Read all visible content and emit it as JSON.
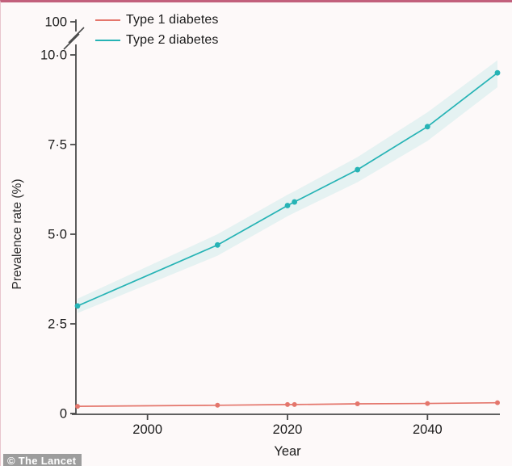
{
  "watermark": "© The Lancet",
  "colors": {
    "type1_line": "#e4766c",
    "type2_line": "#26b3b5",
    "confidence_band": "#e5f2f2",
    "axis": "#4a4a4a",
    "tick_text": "#1c1c1c",
    "frame_top": "#c2607c",
    "watermark_bg": "#9d9d9d"
  },
  "chart_data": {
    "type": "line",
    "title": "",
    "xlabel": "Year",
    "ylabel": "Prevalence rate (%)",
    "xlim": [
      1990,
      2050
    ],
    "ylim": [
      0,
      10
    ],
    "grid": false,
    "legend_position": "top-left",
    "broken_axis_top_label": "100",
    "x_ticks": [
      {
        "value": 2000,
        "label": "2000"
      },
      {
        "value": 2020,
        "label": "2020"
      },
      {
        "value": 2040,
        "label": "2040"
      }
    ],
    "y_ticks": [
      {
        "value": 0,
        "label": "0"
      },
      {
        "value": 2.5,
        "label": "2·5"
      },
      {
        "value": 5,
        "label": "5·0"
      },
      {
        "value": 7.5,
        "label": "7·5"
      },
      {
        "value": 10,
        "label": "10·0"
      }
    ],
    "x": [
      1990,
      2010,
      2020,
      2021,
      2030,
      2040,
      2050
    ],
    "series": [
      {
        "name": "Type 1 diabetes",
        "color": "#e4766c",
        "values": [
          0.2,
          0.23,
          0.25,
          0.25,
          0.27,
          0.28,
          0.3
        ]
      },
      {
        "name": "Type 2 diabetes",
        "color": "#26b3b5",
        "values": [
          3.0,
          4.7,
          5.8,
          5.9,
          6.8,
          8.0,
          9.5
        ],
        "band_lower": [
          2.8,
          4.4,
          5.5,
          5.6,
          6.45,
          7.6,
          9.1
        ],
        "band_upper": [
          3.2,
          5.0,
          6.1,
          6.2,
          7.15,
          8.4,
          9.85
        ]
      }
    ]
  }
}
